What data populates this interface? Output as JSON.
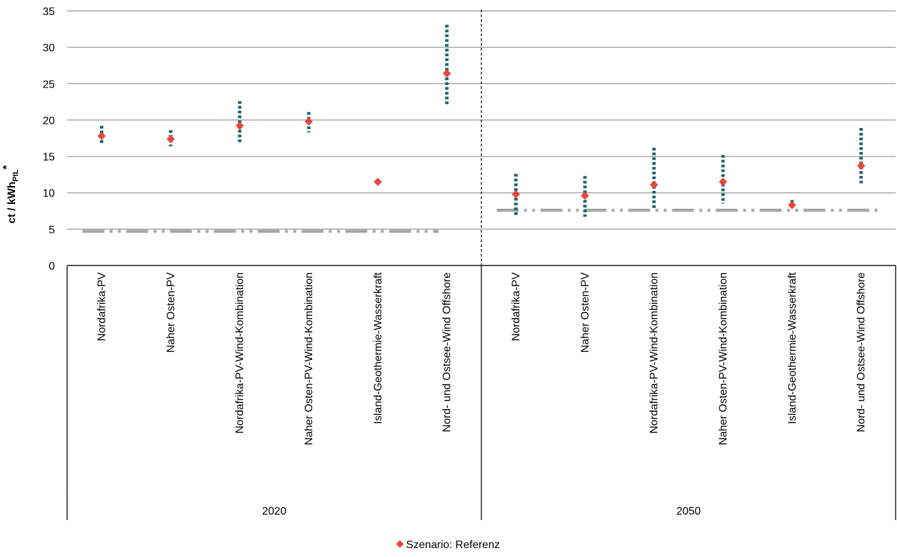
{
  "chart_data": {
    "type": "scatter",
    "title": "",
    "ylabel_main": "ct / kWh",
    "ylabel_sub": "PtL",
    "ylabel_sup": "*",
    "ylim": [
      0,
      35
    ],
    "yticks": [
      0,
      5,
      10,
      15,
      20,
      25,
      30,
      35
    ],
    "grid": true,
    "legend_position": "bottom-center",
    "colors": {
      "marker": "#e8473b",
      "range": "#1f6570",
      "baseline": "#a6a6a6",
      "grid": "#a6a6a6"
    },
    "groups": [
      {
        "label": "2020",
        "categories": [
          "Nordafrika-PV",
          "Naher Osten-PV",
          "Nordafrika-PV-Wind-Kombination",
          "Naher Osten-PV-Wind-Kombination",
          "Island-Geothermie-Wasserkraft",
          "Nord- und Ostsee-Wind Offshore"
        ],
        "values": [
          17.8,
          17.4,
          19.2,
          19.8,
          11.5,
          26.4
        ],
        "range_low": [
          16.7,
          16.4,
          16.8,
          18.3,
          null,
          22.0
        ],
        "range_high": [
          19.2,
          18.6,
          22.6,
          21.1,
          null,
          33.1
        ],
        "baseline": 4.7
      },
      {
        "label": "2050",
        "categories": [
          "Nordafrika-PV",
          "Naher Osten-PV",
          "Nordafrika-PV-Wind-Kombination",
          "Naher Osten-PV-Wind-Kombination",
          "Island-Geothermie-Wasserkraft",
          "Nord- und Ostsee-Wind Offshore"
        ],
        "values": [
          9.8,
          9.6,
          11.1,
          11.5,
          8.3,
          13.7
        ],
        "range_low": [
          6.9,
          6.7,
          7.8,
          8.5,
          7.8,
          11.3
        ],
        "range_high": [
          12.6,
          12.3,
          16.2,
          15.2,
          9.0,
          18.9
        ],
        "baseline": 7.6
      }
    ],
    "series": [
      {
        "name": "Szenario: Referenz"
      }
    ]
  }
}
